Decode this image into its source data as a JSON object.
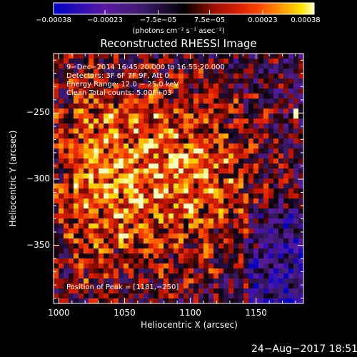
{
  "chart_data": {
    "type": "heatmap",
    "title": "Reconstructed RHESSI Image",
    "xlabel": "Heliocentric X (arcsec)",
    "ylabel": "Heliocentric Y (arcsec)",
    "xlim": [
      996,
      1186
    ],
    "ylim": [
      -394,
      -205
    ],
    "xticks": [
      1000,
      1050,
      1100,
      1150
    ],
    "yticks": [
      -250,
      -300,
      -350
    ],
    "xtick_labels": [
      "1000",
      "1050",
      "1100",
      "1150"
    ],
    "ytick_labels": [
      "−250",
      "−300",
      "−350"
    ],
    "colorbar": {
      "range": [
        -0.00038,
        0.00038
      ],
      "ticks": [
        -0.00038,
        -0.00023,
        -7.5e-05,
        7.5e-05,
        0.00023,
        0.00038
      ],
      "tick_labels": [
        "−0.00038",
        "−0.00023",
        "−7.5e−05",
        "7.5e−05",
        "0.00023",
        "0.00038"
      ],
      "label": "(photons cm⁻² s⁻¹ asec⁻²)",
      "colors": [
        "#0000c8",
        "#5a1aa0",
        "#3a1a68",
        "#000000",
        "#a01000",
        "#e02000",
        "#ff5000",
        "#ffa000",
        "#ffe000",
        "#ffffc0"
      ]
    },
    "annotations": [
      "9−Dec−2014 16:45:20.000 to 16:55:20.000",
      "Detectors: 3F 6F 7F 9F, Att 0",
      "Energy Range: 12.0 − 25.0 keV",
      "Clean     Total counts: 5.00E+03"
    ],
    "peak_text": "Position of Peak = [1181,−250]",
    "peak_position": [
      1181,
      -250
    ]
  },
  "footer": {
    "timestamp": "24−Aug−2017 18:51"
  }
}
